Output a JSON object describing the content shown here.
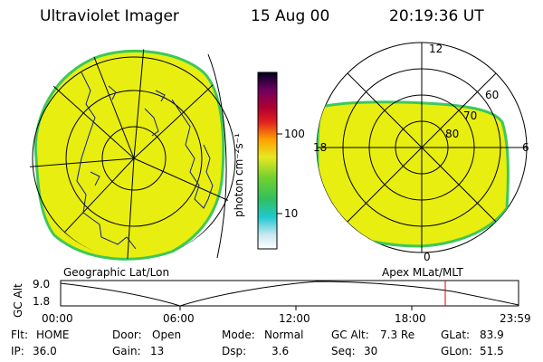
{
  "header": {
    "title": "Ultraviolet Imager",
    "date": "15 Aug 00",
    "time": "20:19:36 UT"
  },
  "colorbar": {
    "label": "photon cm⁻²s⁻¹",
    "ticks": [
      "100",
      "10"
    ]
  },
  "polar": {
    "labels": {
      "top": "12",
      "left": "18",
      "right": "6",
      "bottom": "0"
    },
    "rings": [
      "60",
      "70",
      "80"
    ]
  },
  "map_labels": {
    "left": "Geographic Lat/Lon",
    "right": "Apex MLat/MLT"
  },
  "altitude_plot": {
    "axis_label": "GC Alt",
    "y_top": "9.0",
    "y_bottom": "1.8",
    "x_ticks": [
      "00:00",
      "06:00",
      "12:00",
      "18:00",
      "23:59"
    ]
  },
  "info": {
    "row1": [
      {
        "key": "Flt:",
        "value": "HOME"
      },
      {
        "key": "Door:",
        "value": "Open"
      },
      {
        "key": "Mode:",
        "value": "Normal"
      },
      {
        "key": "GC Alt:",
        "value": "7.3 Re"
      },
      {
        "key": "GLat:",
        "value": "83.9"
      }
    ],
    "row2": [
      {
        "key": "IP:",
        "value": "36.0"
      },
      {
        "key": "Gain:",
        "value": "13"
      },
      {
        "key": "Dsp:",
        "value": "3.6"
      },
      {
        "key": "Seq:",
        "value": "30"
      },
      {
        "key": "GLon:",
        "value": "51.5"
      }
    ]
  },
  "colors": {
    "fill": "#e8ee10",
    "edge": "#3cc85a"
  }
}
